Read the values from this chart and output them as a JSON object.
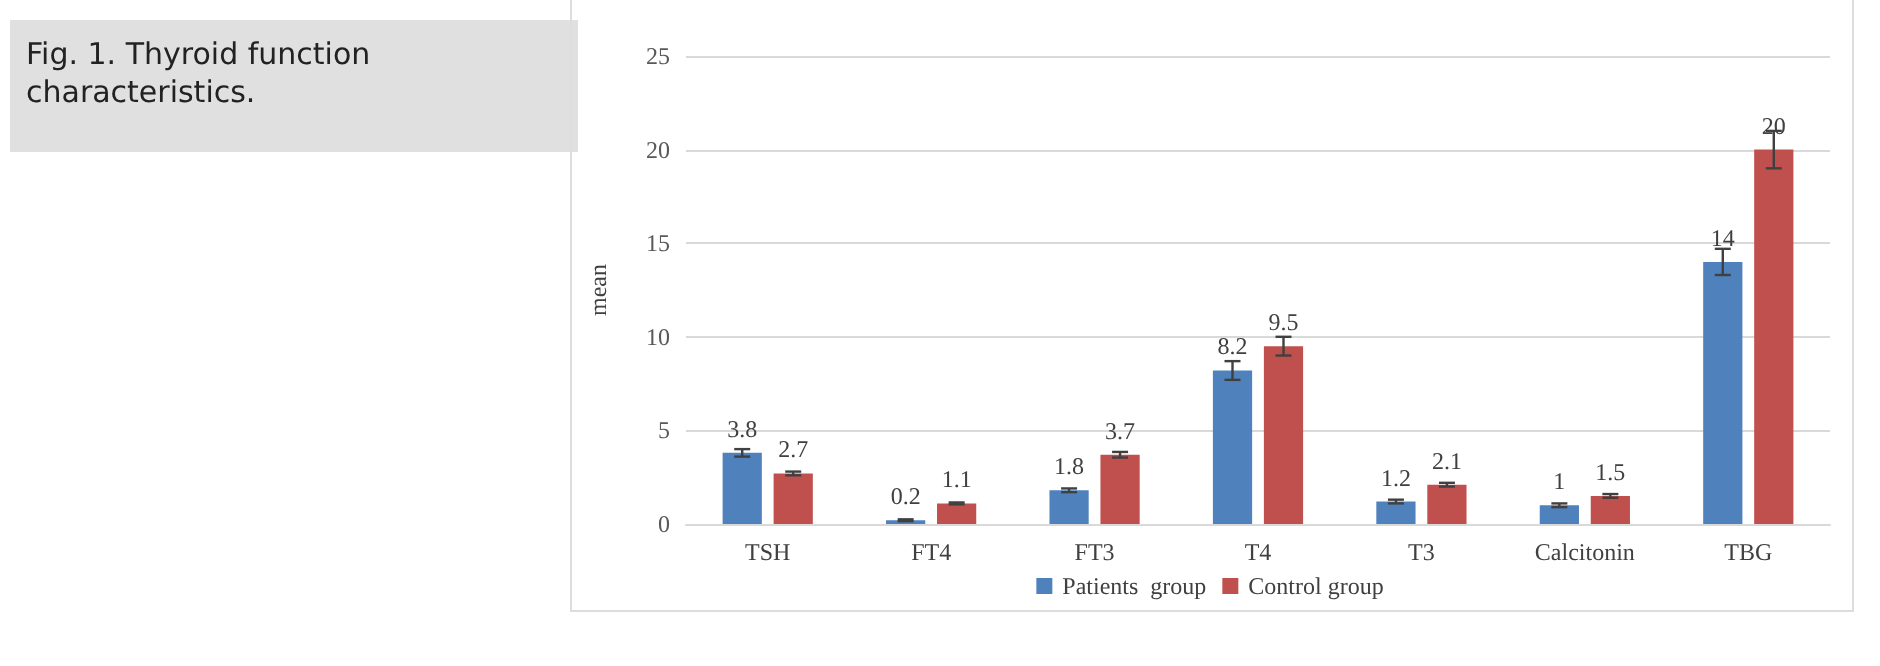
{
  "chart_data": {
    "type": "bar",
    "title": "Fig. 1. Thyroid function characteristics.",
    "ylabel": "mean",
    "categories": [
      "TSH",
      "FT4",
      "FT3",
      "T4",
      "T3",
      "Calcitonin",
      "TBG"
    ],
    "series": [
      {
        "name": "Patients  group",
        "color": "#4f81bd",
        "values": [
          3.8,
          0.2,
          1.8,
          8.2,
          1.2,
          1,
          14
        ],
        "errors": [
          0.2,
          0.05,
          0.1,
          0.5,
          0.1,
          0.1,
          0.7
        ]
      },
      {
        "name": "Control group",
        "color": "#c0504d",
        "values": [
          2.7,
          1.1,
          3.7,
          9.5,
          2.1,
          1.5,
          20
        ],
        "errors": [
          0.1,
          0.05,
          0.15,
          0.5,
          0.1,
          0.1,
          1.0
        ]
      }
    ],
    "ylim": [
      0,
      25
    ],
    "yticks": [
      0,
      5,
      10,
      15,
      20,
      25
    ],
    "grid": "y",
    "legend": "bottom",
    "data_labels": true
  }
}
